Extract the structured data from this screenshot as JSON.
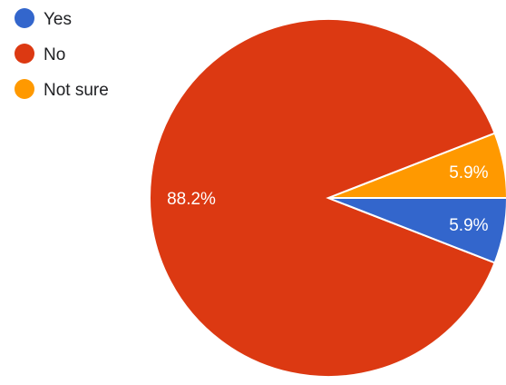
{
  "chart_data": {
    "type": "pie",
    "legend_position": "top-left",
    "slices": [
      {
        "label": "Yes",
        "value": 5.9,
        "display": "5.9%",
        "color": "#3366cc"
      },
      {
        "label": "No",
        "value": 88.2,
        "display": "88.2%",
        "color": "#dc3912"
      },
      {
        "label": "Not sure",
        "value": 5.9,
        "display": "5.9%",
        "color": "#ff9900"
      }
    ]
  }
}
